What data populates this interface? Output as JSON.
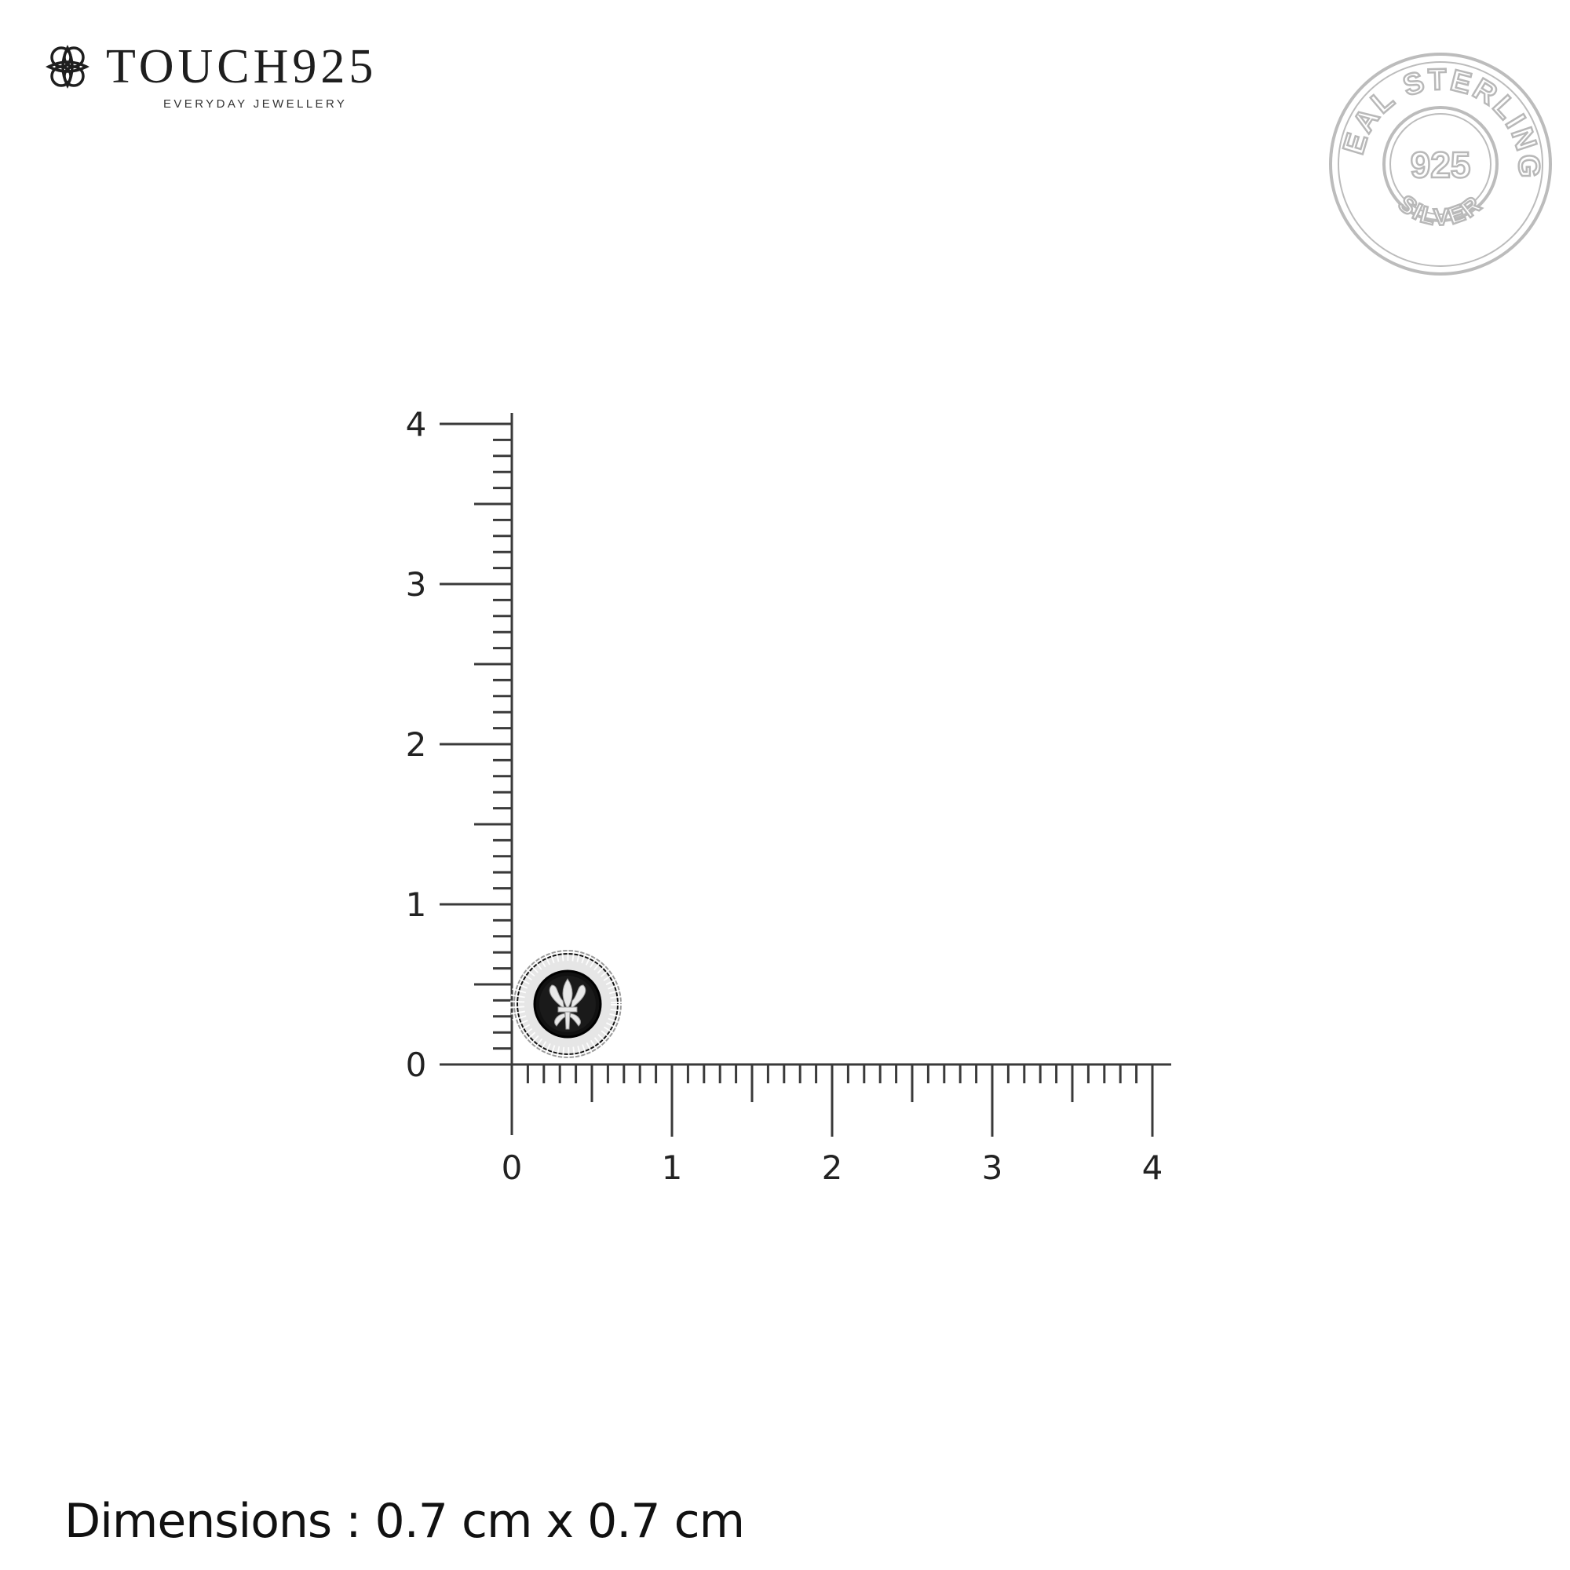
{
  "brand": {
    "name": "TOUCH925",
    "tagline": "EVERYDAY JEWELLERY",
    "icon": "flower-knot-icon"
  },
  "seal": {
    "top_text": "REAL STERLING",
    "center_text": "925",
    "bottom_text": "SILVER",
    "color": "#b8b8b8"
  },
  "ruler": {
    "unit": "cm",
    "x_ticks": [
      "0",
      "1",
      "2",
      "3",
      "4"
    ],
    "y_ticks": [
      "0",
      "1",
      "2",
      "3",
      "4"
    ],
    "range": [
      0,
      4
    ],
    "minor_step": 0.1
  },
  "product": {
    "description_icon": "fleur-de-lis-stud-earring",
    "width_cm": 0.7,
    "height_cm": 0.7
  },
  "dimensions_text": "Dimensions : 0.7 cm x 0.7 cm"
}
